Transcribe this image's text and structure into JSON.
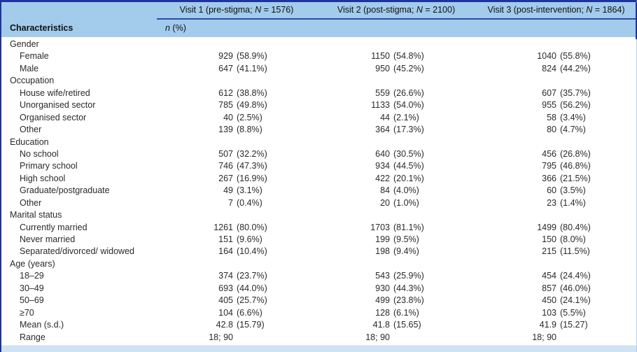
{
  "theme": {
    "navy_border": "#1f339e",
    "header_blue": "#a3cbec",
    "header_rule_blue": "#2b4da6",
    "footer_blue": "#cfe3f5",
    "pale_border_blue": "#b9cfe9",
    "text_color": "#2a2a2a"
  },
  "header": {
    "characteristics_label": "Characteristics",
    "subheader": {
      "n": "n",
      "rest": " (%)"
    },
    "visits": [
      {
        "pre": "Visit 1 (pre-stigma; ",
        "n": "N",
        "post": " = 1576)"
      },
      {
        "pre": "Visit 2 (post-stigma; ",
        "n": "N",
        "post": " = 2100)"
      },
      {
        "pre": "Visit 3 (post-intervention; ",
        "n": "N",
        "post": " = 1864)"
      }
    ]
  },
  "chart_data": {
    "type": "table",
    "title": "Characteristics by visit",
    "columns": [
      "Characteristics",
      "Visit 1 (pre-stigma; N = 1576)",
      "Visit 2 (post-stigma; N = 2100)",
      "Visit 3 (post-intervention; N = 1864)"
    ],
    "unit_row": "n (%)"
  },
  "rows": [
    {
      "label": "Gender",
      "type": "section",
      "values": []
    },
    {
      "label": "Female",
      "type": "item",
      "values": [
        "929 (58.9%)",
        "1150 (54.8%)",
        "1040 (55.8%)"
      ]
    },
    {
      "label": "Male",
      "type": "item",
      "values": [
        "647 (41.1%)",
        "950 (45.2%)",
        "824 (44.2%)"
      ]
    },
    {
      "label": "Occupation",
      "type": "section",
      "values": []
    },
    {
      "label": "House wife/retired",
      "type": "item",
      "values": [
        "612 (38.8%)",
        "559 (26.6%)",
        "607 (35.7%)"
      ]
    },
    {
      "label": "Unorganised sector",
      "type": "item",
      "values": [
        "785 (49.8%)",
        "1133 (54.0%)",
        "955 (56.2%)"
      ]
    },
    {
      "label": "Organised sector",
      "type": "item",
      "values": [
        "40 (2.5%)",
        "44 (2.1%)",
        "58 (3.4%)"
      ]
    },
    {
      "label": "Other",
      "type": "item",
      "values": [
        "139 (8.8%)",
        "364 (17.3%)",
        "80 (4.7%)"
      ]
    },
    {
      "label": "Education",
      "type": "section",
      "values": []
    },
    {
      "label": "No school",
      "type": "item",
      "values": [
        "507 (32.2%)",
        "640 (30.5%)",
        "456 (26.8%)"
      ]
    },
    {
      "label": "Primary school",
      "type": "item",
      "values": [
        "746 (47.3%)",
        "934 (44.5%)",
        "795 (46.8%)"
      ]
    },
    {
      "label": "High school",
      "type": "item",
      "values": [
        "267 (16.9%)",
        "422 (20.1%)",
        "366 (21.5%)"
      ]
    },
    {
      "label": "Graduate/postgraduate",
      "type": "item",
      "values": [
        "49 (3.1%)",
        "84 (4.0%)",
        "60 (3.5%)"
      ]
    },
    {
      "label": "Other",
      "type": "item",
      "values": [
        "7 (0.4%)",
        "20 (1.0%)",
        "23 (1.4%)"
      ]
    },
    {
      "label": "Marital status",
      "type": "section",
      "values": []
    },
    {
      "label": "Currently married",
      "type": "item",
      "values": [
        "1261 (80.0%)",
        "1703 (81.1%)",
        "1499 (80.4%)"
      ]
    },
    {
      "label": "Never married",
      "type": "item",
      "values": [
        "151 (9.6%)",
        "199 (9.5%)",
        "150 (8.0%)"
      ]
    },
    {
      "label": "Separated/divorced/ widowed",
      "type": "item",
      "values": [
        "164 (10.4%)",
        "198 (9.4%)",
        "215 (11.5%)"
      ]
    },
    {
      "label": "Age (years)",
      "type": "section",
      "values": []
    },
    {
      "label": "18–29",
      "type": "item",
      "values": [
        "374 (23.7%)",
        "543 (25.9%)",
        "454 (24.4%)"
      ]
    },
    {
      "label": "30–49",
      "type": "item",
      "values": [
        "693 (44.0%)",
        "930 (44.3%)",
        "857 (46.0%)"
      ]
    },
    {
      "label": "50–69",
      "type": "item",
      "values": [
        "405 (25.7%)",
        "499 (23.8%)",
        "450 (24.1%)"
      ]
    },
    {
      "label": "≥70",
      "type": "item",
      "values": [
        "104 (6.6%)",
        "128 (6.1%)",
        "103 (5.5%)"
      ]
    },
    {
      "label": "Mean (s.d.)",
      "type": "item",
      "values": [
        "42.8 (15.79)",
        "41.8 (15.65)",
        "41.9 (15.27)"
      ]
    },
    {
      "label": "Range",
      "type": "item",
      "values": [
        "18; 90",
        "18; 90",
        "18; 90"
      ]
    }
  ]
}
